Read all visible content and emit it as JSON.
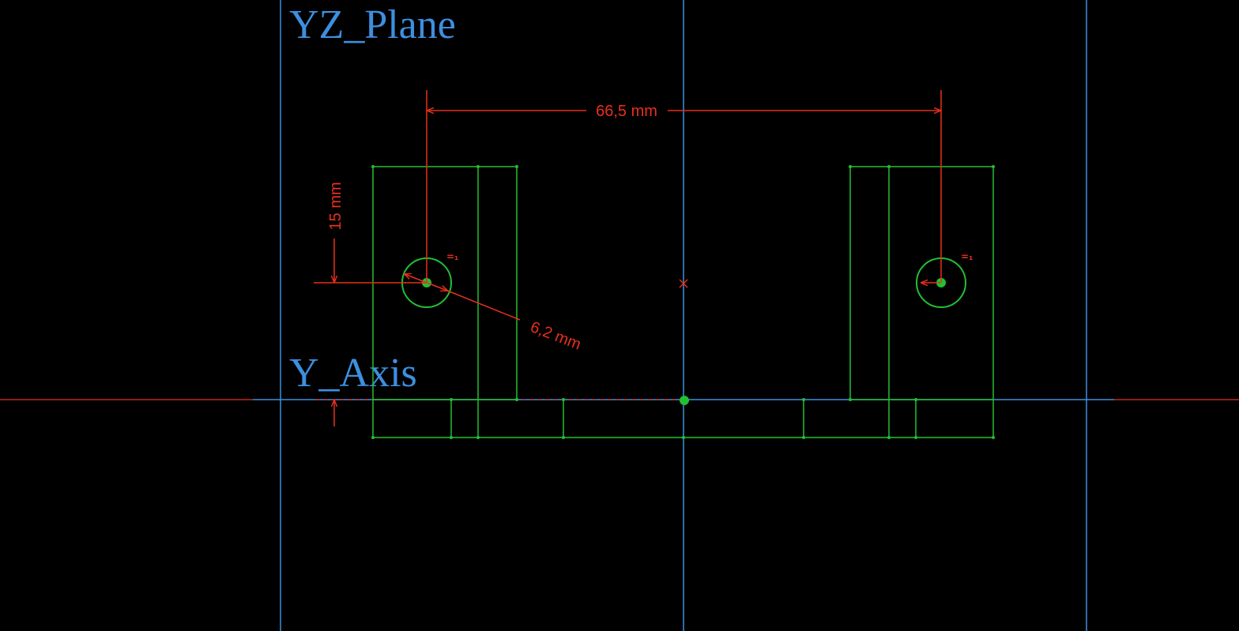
{
  "viewport": {
    "background": "#000000",
    "reference_color": "#3d8fe0",
    "sketch_color": "#22c032",
    "dimension_color": "#e8301c"
  },
  "labels": {
    "plane": "YZ_Plane",
    "axis": "Y_Axis"
  },
  "dimensions": {
    "horizontal_distance": "66,5 mm",
    "vertical_offset": "15 mm",
    "hole_diameter": "6,2 mm"
  },
  "constraints": {
    "equal_left": "=₁",
    "equal_right": "=₁"
  }
}
